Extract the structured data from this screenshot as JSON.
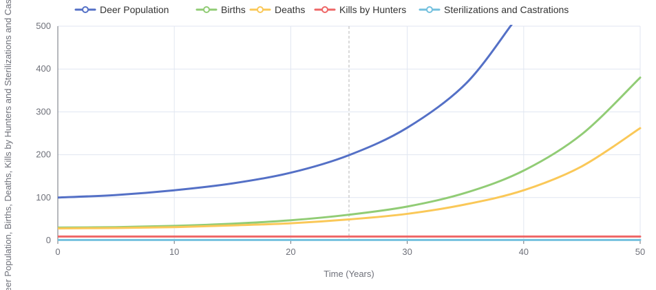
{
  "chart_data": {
    "type": "line",
    "title": "",
    "xlabel": "Time (Years)",
    "ylabel": "Deer Population, Births, Deaths, Kills by Hunters and Sterilizations and Castrations",
    "xlim": [
      0,
      50
    ],
    "ylim": [
      0,
      500
    ],
    "x_ticks": [
      "0",
      "10",
      "20",
      "30",
      "40",
      "50"
    ],
    "y_ticks": [
      "0",
      "100",
      "200",
      "300",
      "400",
      "500"
    ],
    "grid": true,
    "legend_position": "top",
    "cursor_x": 25,
    "series": [
      {
        "name": "Deer Population",
        "color": "#5470c6",
        "x": [
          0,
          5,
          10,
          15,
          20,
          25,
          30,
          35,
          39
        ],
        "y": [
          100,
          106,
          117,
          133,
          158,
          199,
          263,
          365,
          505
        ]
      },
      {
        "name": "Births",
        "color": "#91cc75",
        "x": [
          0,
          5,
          10,
          15,
          20,
          25,
          30,
          35,
          40,
          45,
          50
        ],
        "y": [
          30,
          31,
          34,
          39,
          47,
          60,
          79,
          111,
          163,
          248,
          380
        ]
      },
      {
        "name": "Deaths",
        "color": "#fac858",
        "x": [
          0,
          5,
          10,
          15,
          20,
          25,
          30,
          35,
          40,
          45,
          50
        ],
        "y": [
          28,
          29,
          31,
          35,
          40,
          49,
          62,
          84,
          117,
          173,
          262
        ]
      },
      {
        "name": "Kills by Hunters",
        "color": "#ee6666",
        "x": [
          0,
          50
        ],
        "y": [
          9,
          9
        ]
      },
      {
        "name": "Sterilizations and Castrations",
        "color": "#73c0de",
        "x": [
          0,
          50
        ],
        "y": [
          1,
          1
        ]
      }
    ]
  }
}
